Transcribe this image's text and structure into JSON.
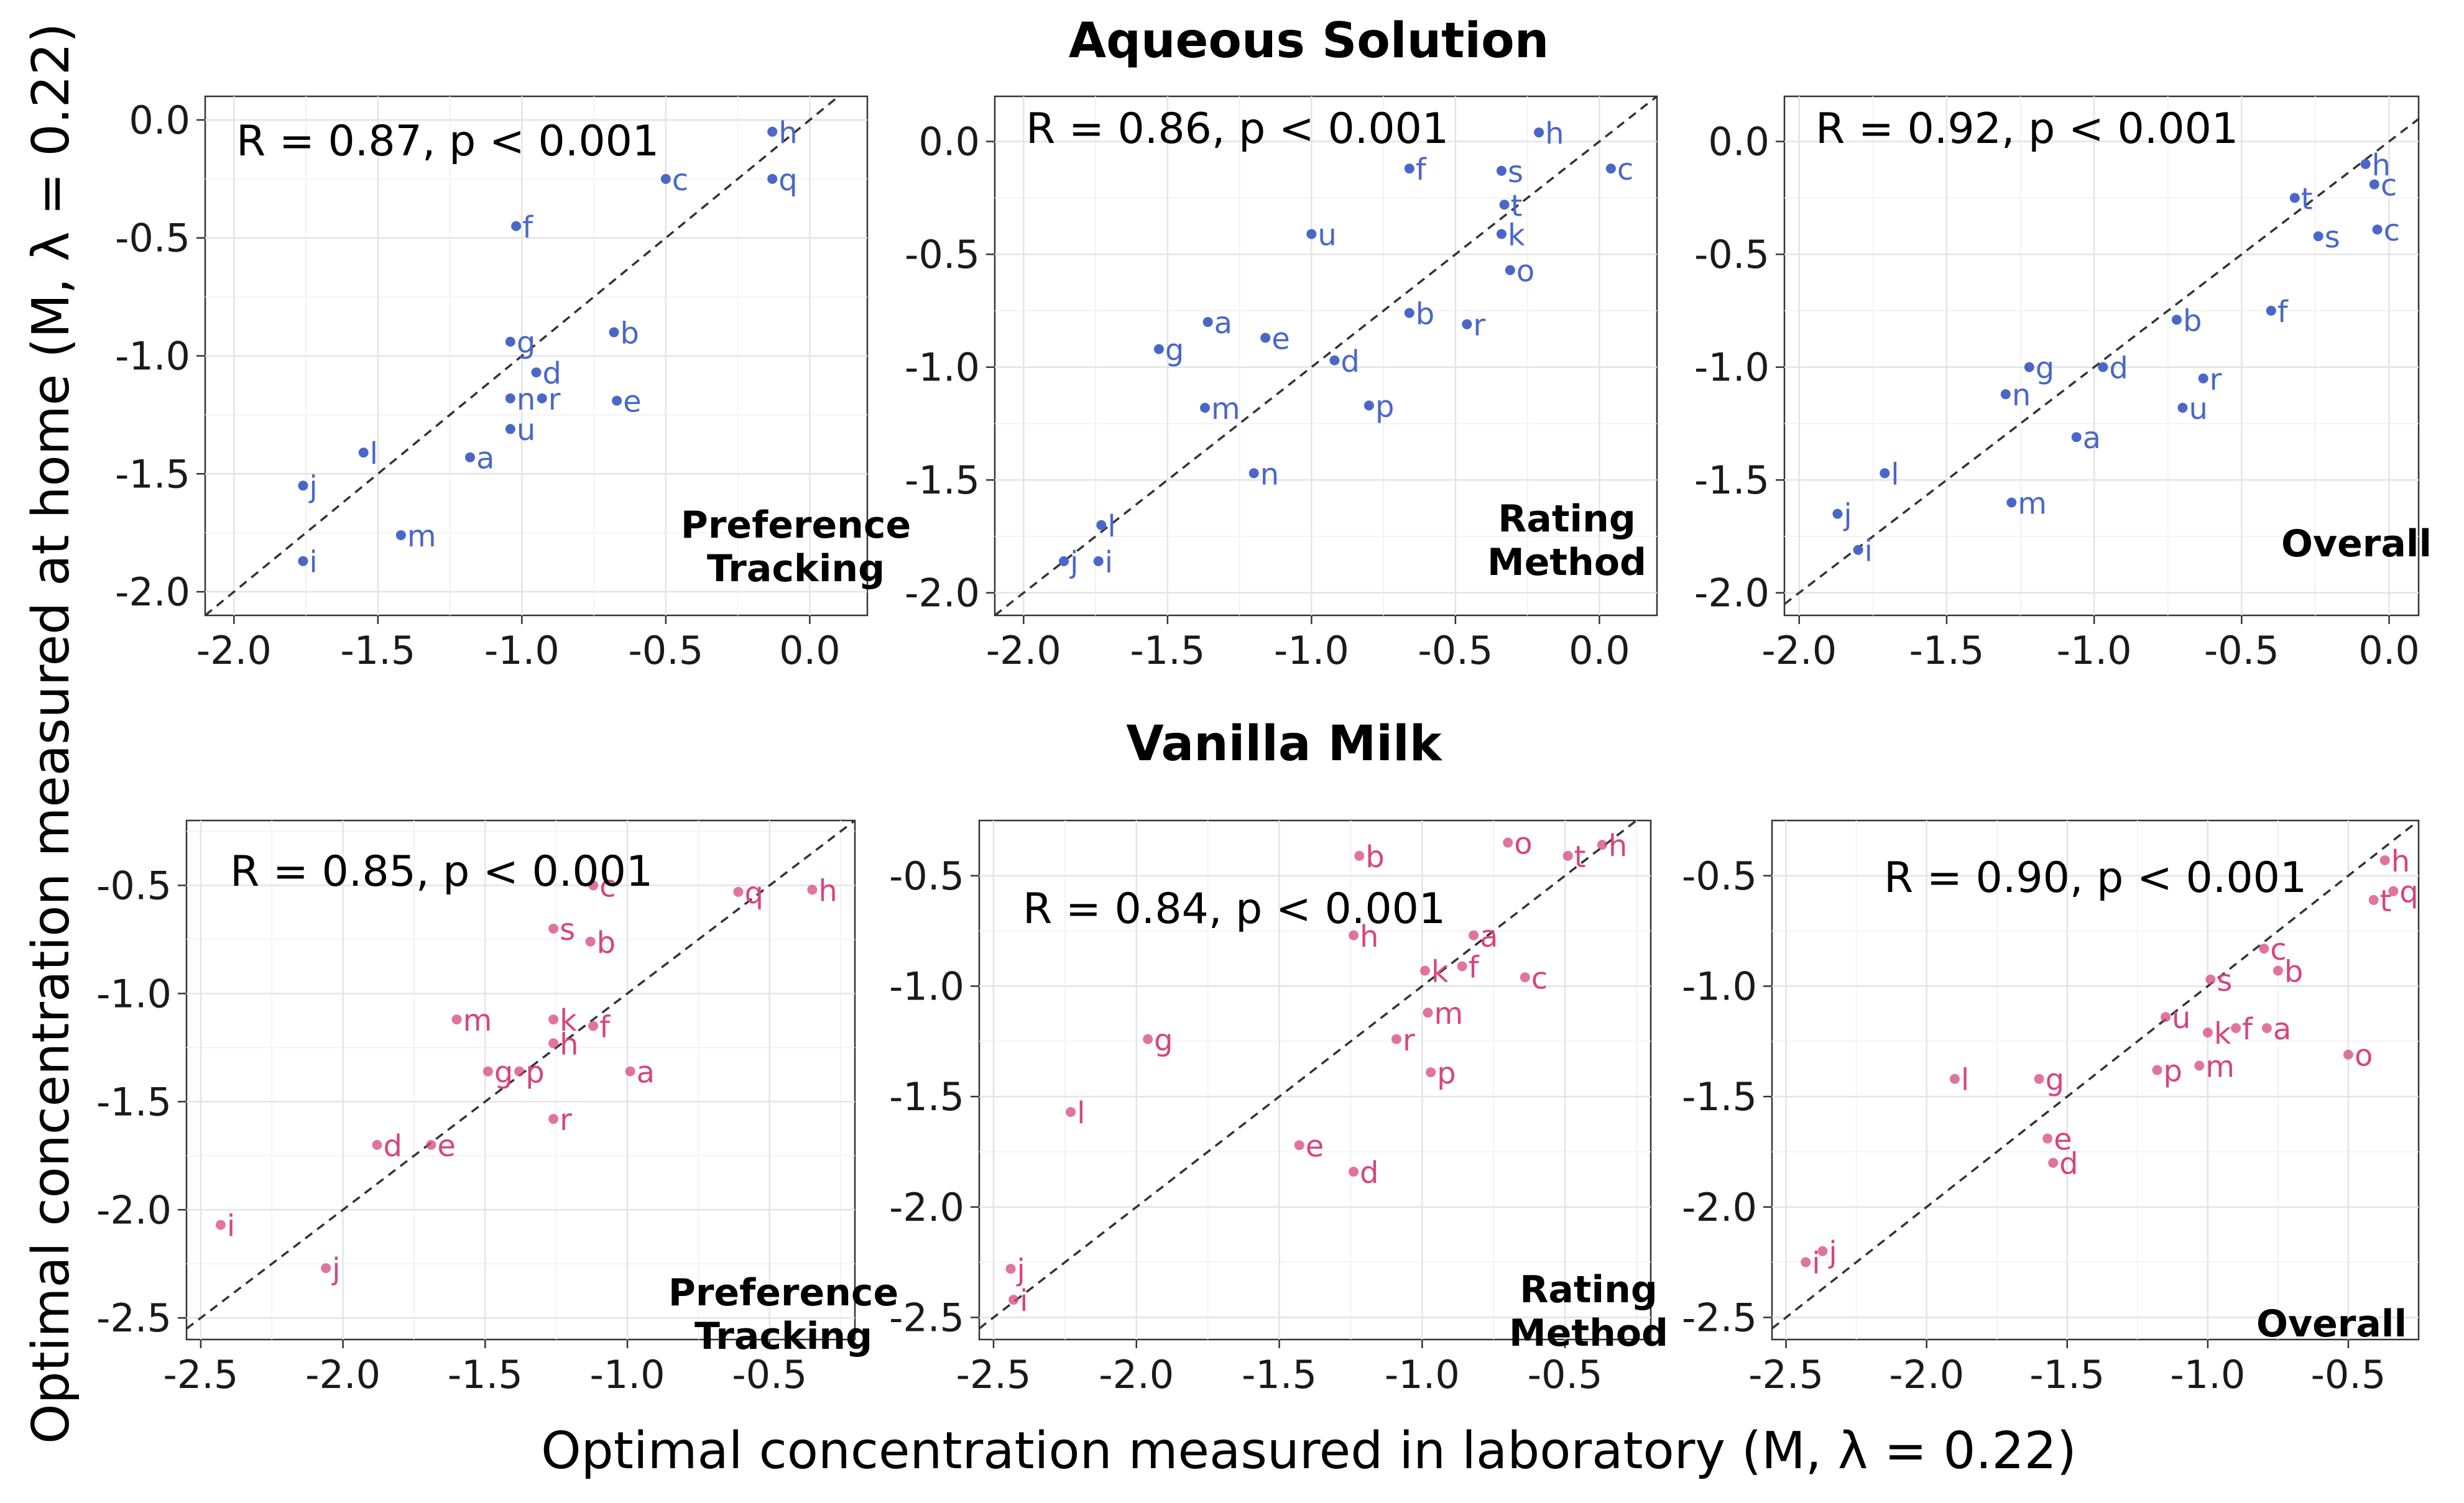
{
  "titles": {
    "top": "Aqueous Solution",
    "bottom": "Vanilla Milk",
    "x_axis": "Optimal concentration measured in laboratory (M, λ = 0.22)",
    "y_axis": "Optimal concentration measured at home (M, λ = 0.22)"
  },
  "colors": {
    "aqueous": "#4a67c8",
    "milk": "#d6457f"
  },
  "chart_data": [
    {
      "type": "scatter",
      "section": "Aqueous Solution",
      "method": [
        "Preference",
        "Tracking"
      ],
      "stat": "R = 0.87, p < 0.001",
      "xlim": [
        -2.1,
        0.2
      ],
      "ylim": [
        -2.1,
        0.1
      ],
      "xticks": [
        -2.0,
        -1.5,
        -1.0,
        -0.5,
        0.0
      ],
      "yticks": [
        0.0,
        -0.5,
        -1.0,
        -1.5,
        -2.0
      ],
      "color": "#4a67c8",
      "points": [
        {
          "label": "h",
          "x": -0.13,
          "y": -0.05
        },
        {
          "label": "q",
          "x": -0.13,
          "y": -0.25
        },
        {
          "label": "c",
          "x": -0.5,
          "y": -0.25
        },
        {
          "label": "f",
          "x": -1.02,
          "y": -0.45
        },
        {
          "label": "g",
          "x": -1.04,
          "y": -0.94
        },
        {
          "label": "b",
          "x": -0.68,
          "y": -0.9
        },
        {
          "label": "d",
          "x": -0.95,
          "y": -1.07
        },
        {
          "label": "n",
          "x": -1.04,
          "y": -1.18
        },
        {
          "label": "r",
          "x": -0.93,
          "y": -1.18
        },
        {
          "label": "e",
          "x": -0.67,
          "y": -1.19
        },
        {
          "label": "u",
          "x": -1.04,
          "y": -1.31
        },
        {
          "label": "l",
          "x": -1.55,
          "y": -1.41
        },
        {
          "label": "a",
          "x": -1.18,
          "y": -1.43
        },
        {
          "label": "j",
          "x": -1.76,
          "y": -1.55
        },
        {
          "label": "m",
          "x": -1.42,
          "y": -1.76
        },
        {
          "label": "i",
          "x": -1.76,
          "y": -1.87
        }
      ]
    },
    {
      "type": "scatter",
      "section": "Aqueous Solution",
      "method": [
        "Rating",
        "Method"
      ],
      "stat": "R = 0.86, p < 0.001",
      "xlim": [
        -2.1,
        0.2
      ],
      "ylim": [
        -2.1,
        0.2
      ],
      "xticks": [
        -2.0,
        -1.5,
        -1.0,
        -0.5,
        0.0
      ],
      "yticks": [
        0.0,
        -0.5,
        -1.0,
        -1.5,
        -2.0
      ],
      "color": "#4a67c8",
      "points": [
        {
          "label": "h",
          "x": -0.21,
          "y": 0.04
        },
        {
          "label": "f",
          "x": -0.66,
          "y": -0.12
        },
        {
          "label": "s",
          "x": -0.34,
          "y": -0.13
        },
        {
          "label": "c",
          "x": 0.04,
          "y": -0.12
        },
        {
          "label": "t",
          "x": -0.33,
          "y": -0.28
        },
        {
          "label": "k",
          "x": -0.34,
          "y": -0.41
        },
        {
          "label": "u",
          "x": -1.0,
          "y": -0.41
        },
        {
          "label": "o",
          "x": -0.31,
          "y": -0.57
        },
        {
          "label": "b",
          "x": -0.66,
          "y": -0.76
        },
        {
          "label": "a",
          "x": -1.36,
          "y": -0.8
        },
        {
          "label": "r",
          "x": -0.46,
          "y": -0.81
        },
        {
          "label": "e",
          "x": -1.16,
          "y": -0.87
        },
        {
          "label": "g",
          "x": -1.53,
          "y": -0.92
        },
        {
          "label": "d",
          "x": -0.92,
          "y": -0.97
        },
        {
          "label": "m",
          "x": -1.37,
          "y": -1.18
        },
        {
          "label": "p",
          "x": -0.8,
          "y": -1.17
        },
        {
          "label": "n",
          "x": -1.2,
          "y": -1.47
        },
        {
          "label": "l",
          "x": -1.73,
          "y": -1.7
        },
        {
          "label": "j",
          "x": -1.86,
          "y": -1.86
        },
        {
          "label": "i",
          "x": -1.74,
          "y": -1.86
        }
      ]
    },
    {
      "type": "scatter",
      "section": "Aqueous Solution",
      "method": [
        "Overall"
      ],
      "stat": "R = 0.92, p < 0.001",
      "xlim": [
        -2.05,
        0.1
      ],
      "ylim": [
        -2.1,
        0.2
      ],
      "xticks": [
        -2.0,
        -1.5,
        -1.0,
        -0.5,
        0.0
      ],
      "yticks": [
        0.0,
        -0.5,
        -1.0,
        -1.5,
        -2.0
      ],
      "color": "#4a67c8",
      "points": [
        {
          "label": "h",
          "x": -0.08,
          "y": -0.1
        },
        {
          "label": "c",
          "x": -0.05,
          "y": -0.19
        },
        {
          "label": "t",
          "x": -0.32,
          "y": -0.25
        },
        {
          "label": "s",
          "x": -0.24,
          "y": -0.42
        },
        {
          "label": "c",
          "x": -0.04,
          "y": -0.39
        },
        {
          "label": "f",
          "x": -0.4,
          "y": -0.75
        },
        {
          "label": "b",
          "x": -0.72,
          "y": -0.79
        },
        {
          "label": "g",
          "x": -1.22,
          "y": -1.0
        },
        {
          "label": "d",
          "x": -0.97,
          "y": -1.0
        },
        {
          "label": "r",
          "x": -0.63,
          "y": -1.05
        },
        {
          "label": "n",
          "x": -1.3,
          "y": -1.12
        },
        {
          "label": "u",
          "x": -0.7,
          "y": -1.18
        },
        {
          "label": "a",
          "x": -1.06,
          "y": -1.31
        },
        {
          "label": "l",
          "x": -1.71,
          "y": -1.47
        },
        {
          "label": "m",
          "x": -1.28,
          "y": -1.6
        },
        {
          "label": "j",
          "x": -1.87,
          "y": -1.65
        },
        {
          "label": "i",
          "x": -1.8,
          "y": -1.81
        }
      ]
    },
    {
      "type": "scatter",
      "section": "Vanilla Milk",
      "method": [
        "Preference",
        "Tracking"
      ],
      "stat": "R = 0.85, p < 0.001",
      "xlim": [
        -2.55,
        -0.2
      ],
      "ylim": [
        -2.6,
        -0.2
      ],
      "xticks": [
        -2.5,
        -2.0,
        -1.5,
        -1.0,
        -0.5
      ],
      "yticks": [
        -0.5,
        -1.0,
        -1.5,
        -2.0,
        -2.5
      ],
      "color": "#d6457f",
      "points": [
        {
          "label": "c",
          "x": -1.12,
          "y": -0.5
        },
        {
          "label": "q",
          "x": -0.61,
          "y": -0.53
        },
        {
          "label": "h",
          "x": -0.35,
          "y": -0.52
        },
        {
          "label": "s",
          "x": -1.26,
          "y": -0.7
        },
        {
          "label": "b",
          "x": -1.13,
          "y": -0.76
        },
        {
          "label": "m",
          "x": -1.6,
          "y": -1.12
        },
        {
          "label": "k",
          "x": -1.26,
          "y": -1.12
        },
        {
          "label": "f",
          "x": -1.12,
          "y": -1.15
        },
        {
          "label": "h",
          "x": -1.26,
          "y": -1.23
        },
        {
          "label": "g",
          "x": -1.49,
          "y": -1.36
        },
        {
          "label": "p",
          "x": -1.38,
          "y": -1.36
        },
        {
          "label": "a",
          "x": -0.99,
          "y": -1.36
        },
        {
          "label": "r",
          "x": -1.26,
          "y": -1.58
        },
        {
          "label": "d",
          "x": -1.88,
          "y": -1.7
        },
        {
          "label": "e",
          "x": -1.69,
          "y": -1.7
        },
        {
          "label": "i",
          "x": -2.43,
          "y": -2.07
        },
        {
          "label": "j",
          "x": -2.06,
          "y": -2.27
        }
      ]
    },
    {
      "type": "scatter",
      "section": "Vanilla Milk",
      "method": [
        "Rating",
        "Method"
      ],
      "stat": "R = 0.84, p < 0.001",
      "xlim": [
        -2.55,
        -0.2
      ],
      "ylim": [
        -2.6,
        -0.25
      ],
      "xticks": [
        -2.5,
        -2.0,
        -1.5,
        -1.0,
        -0.5
      ],
      "yticks": [
        -0.5,
        -1.0,
        -1.5,
        -2.0,
        -2.5
      ],
      "color": "#d6457f",
      "points": [
        {
          "label": "o",
          "x": -0.7,
          "y": -0.35
        },
        {
          "label": "b",
          "x": -1.22,
          "y": -0.41
        },
        {
          "label": "t",
          "x": -0.49,
          "y": -0.41
        },
        {
          "label": "h",
          "x": -0.37,
          "y": -0.36
        },
        {
          "label": "a",
          "x": -0.82,
          "y": -0.77
        },
        {
          "label": "h",
          "x": -1.24,
          "y": -0.77
        },
        {
          "label": "f",
          "x": -0.86,
          "y": -0.91
        },
        {
          "label": "k",
          "x": -0.99,
          "y": -0.93
        },
        {
          "label": "c",
          "x": -0.64,
          "y": -0.96
        },
        {
          "label": "m",
          "x": -0.98,
          "y": -1.12
        },
        {
          "label": "r",
          "x": -1.09,
          "y": -1.24
        },
        {
          "label": "g",
          "x": -1.96,
          "y": -1.24
        },
        {
          "label": "p",
          "x": -0.97,
          "y": -1.39
        },
        {
          "label": "l",
          "x": -2.23,
          "y": -1.57
        },
        {
          "label": "e",
          "x": -1.43,
          "y": -1.72
        },
        {
          "label": "d",
          "x": -1.24,
          "y": -1.84
        },
        {
          "label": "j",
          "x": -2.44,
          "y": -2.28
        },
        {
          "label": "i",
          "x": -2.43,
          "y": -2.42
        }
      ]
    },
    {
      "type": "scatter",
      "section": "Vanilla Milk",
      "method": [
        "Overall"
      ],
      "stat": "R = 0.90, p < 0.001",
      "xlim": [
        -2.55,
        -0.25
      ],
      "ylim": [
        -2.6,
        -0.25
      ],
      "xticks": [
        -2.5,
        -2.0,
        -1.5,
        -1.0,
        -0.5
      ],
      "yticks": [
        -0.5,
        -1.0,
        -1.5,
        -2.0,
        -2.5
      ],
      "color": "#d6457f",
      "points": [
        {
          "label": "h",
          "x": -0.37,
          "y": -0.43
        },
        {
          "label": "t",
          "x": -0.41,
          "y": -0.61
        },
        {
          "label": "q",
          "x": -0.34,
          "y": -0.57
        },
        {
          "label": "c",
          "x": -0.8,
          "y": -0.83
        },
        {
          "label": "b",
          "x": -0.75,
          "y": -0.93
        },
        {
          "label": "s",
          "x": -0.99,
          "y": -0.97
        },
        {
          "label": "u",
          "x": -1.15,
          "y": -1.14
        },
        {
          "label": "k",
          "x": -1.0,
          "y": -1.21
        },
        {
          "label": "f",
          "x": -0.9,
          "y": -1.19
        },
        {
          "label": "a",
          "x": -0.79,
          "y": -1.19
        },
        {
          "label": "o",
          "x": -0.5,
          "y": -1.31
        },
        {
          "label": "p",
          "x": -1.18,
          "y": -1.38
        },
        {
          "label": "m",
          "x": -1.03,
          "y": -1.36
        },
        {
          "label": "l",
          "x": -1.9,
          "y": -1.42
        },
        {
          "label": "g",
          "x": -1.6,
          "y": -1.42
        },
        {
          "label": "d",
          "x": -1.55,
          "y": -1.8
        },
        {
          "label": "e",
          "x": -1.57,
          "y": -1.69
        },
        {
          "label": "j",
          "x": -2.37,
          "y": -2.2
        },
        {
          "label": "i",
          "x": -2.43,
          "y": -2.25
        }
      ]
    }
  ]
}
